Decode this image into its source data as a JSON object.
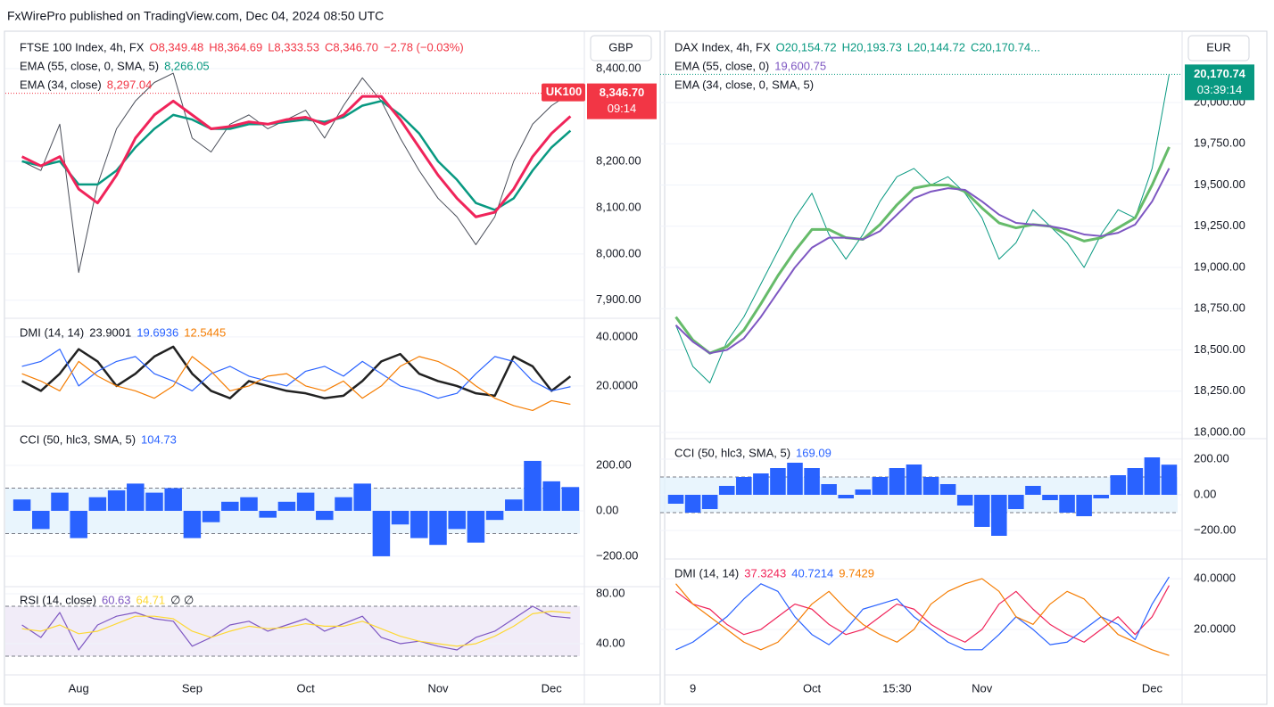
{
  "header": {
    "title": "FxWirePro published on TradingView.com, Dec 04, 2024 08:50 UTC"
  },
  "chart_data": [
    {
      "type": "line",
      "currency": "GBP",
      "legend_rows": [
        [
          {
            "text": "FTSE 100 Index, 4h, FX",
            "color": "#131722"
          },
          {
            "text": "O8,349.48",
            "color": "#f23645"
          },
          {
            "text": "H8,364.69",
            "color": "#f23645"
          },
          {
            "text": "L8,333.53",
            "color": "#f23645"
          },
          {
            "text": "C8,346.70",
            "color": "#f23645"
          },
          {
            "text": "−2.78 (−0.03%)",
            "color": "#f23645"
          }
        ],
        [
          {
            "text": "EMA (55, close, 0, SMA, 5)",
            "color": "#131722"
          },
          {
            "text": "8,266.05",
            "color": "#089981"
          }
        ],
        [
          {
            "text": "EMA (34, close)",
            "color": "#131722"
          },
          {
            "text": "8,297.04",
            "color": "#f23645"
          }
        ]
      ],
      "price_tag": {
        "symbol": "UK100",
        "price": "8,346.70",
        "countdown": "09:14",
        "color": "#f23645"
      },
      "categories": [
        null,
        null,
        null,
        "Aug",
        null,
        null,
        null,
        null,
        null,
        "Sep",
        null,
        null,
        null,
        null,
        null,
        "Oct",
        null,
        null,
        null,
        null,
        null,
        null,
        "Nov",
        null,
        null,
        null,
        null,
        null,
        "Dec",
        null
      ],
      "series": [
        {
          "name": "Close",
          "color": "#4a4e59",
          "width": 1,
          "values": [
            8200,
            8180,
            8280,
            7960,
            8150,
            8270,
            8330,
            8370,
            8390,
            8250,
            8220,
            8280,
            8300,
            8270,
            8290,
            8310,
            8250,
            8320,
            8380,
            8330,
            8250,
            8180,
            8120,
            8080,
            8020,
            8080,
            8200,
            8280,
            8320,
            8346.7
          ]
        },
        {
          "name": "EMA 55",
          "color": "#089981",
          "width": 2.5,
          "values": [
            8200,
            8190,
            8200,
            8150,
            8150,
            8180,
            8230,
            8270,
            8300,
            8290,
            8270,
            8270,
            8280,
            8280,
            8285,
            8290,
            8285,
            8295,
            8320,
            8330,
            8300,
            8260,
            8200,
            8160,
            8110,
            8095,
            8120,
            8180,
            8230,
            8266.05
          ]
        },
        {
          "name": "EMA 34",
          "color": "#f0245a",
          "width": 3,
          "values": [
            8210,
            8190,
            8210,
            8140,
            8110,
            8170,
            8250,
            8300,
            8330,
            8300,
            8270,
            8275,
            8285,
            8280,
            8290,
            8295,
            8280,
            8300,
            8340,
            8340,
            8290,
            8230,
            8170,
            8120,
            8080,
            8090,
            8140,
            8210,
            8260,
            8297.04
          ]
        }
      ],
      "ylim": [
        7865,
        8471
      ],
      "yticks": [
        {
          "value": 8400,
          "label": "8,400.00"
        },
        {
          "value": 8200,
          "label": "8,200.00"
        },
        {
          "value": 8100,
          "label": "8,100.00"
        },
        {
          "value": 8000,
          "label": "8,000.00"
        },
        {
          "value": 7900,
          "label": "7,900.00"
        }
      ]
    },
    {
      "type": "line",
      "legend_rows": [
        [
          {
            "text": "DMI (14, 14)",
            "color": "#131722"
          },
          {
            "text": "23.9001",
            "color": "#131722"
          },
          {
            "text": "19.6936",
            "color": "#2962ff"
          },
          {
            "text": "12.5445",
            "color": "#f57c00"
          }
        ]
      ],
      "series": [
        {
          "name": "ADX",
          "color": "#222222",
          "width": 2.5,
          "values": [
            22,
            18,
            25,
            35,
            30,
            20,
            25,
            32,
            36,
            25,
            18,
            15,
            22,
            20,
            18,
            17,
            15,
            16,
            22,
            30,
            33,
            25,
            22,
            20,
            17,
            16,
            32,
            28,
            18,
            23.9001
          ]
        },
        {
          "name": "+DI",
          "color": "#2962ff",
          "width": 1.2,
          "values": [
            28,
            30,
            35,
            20,
            26,
            30,
            32,
            25,
            22,
            18,
            25,
            28,
            24,
            22,
            20,
            26,
            28,
            24,
            30,
            25,
            20,
            18,
            15,
            17,
            25,
            32,
            30,
            22,
            18,
            19.6936
          ]
        },
        {
          "name": "-DI",
          "color": "#f57c00",
          "width": 1.2,
          "values": [
            25,
            22,
            18,
            30,
            24,
            20,
            18,
            15,
            20,
            32,
            26,
            18,
            20,
            24,
            25,
            20,
            18,
            22,
            15,
            20,
            28,
            32,
            30,
            26,
            20,
            15,
            12,
            10,
            14,
            12.5445
          ]
        }
      ],
      "ylim": [
        4.7,
        46.5
      ],
      "yticks": [
        {
          "value": 40,
          "label": "40.0000"
        },
        {
          "value": 20,
          "label": "20.0000"
        }
      ]
    },
    {
      "type": "bar",
      "color": "#2962ff",
      "band": [
        -100,
        100
      ],
      "legend_rows": [
        [
          {
            "text": "CCI (50, hlc3, SMA, 5)",
            "color": "#131722"
          },
          {
            "text": "104.73",
            "color": "#2962ff"
          }
        ]
      ],
      "values": [
        50,
        -80,
        80,
        -120,
        60,
        90,
        120,
        80,
        100,
        -120,
        -50,
        40,
        60,
        -30,
        40,
        80,
        -40,
        60,
        120,
        -200,
        -60,
        -120,
        -150,
        -80,
        -140,
        -40,
        50,
        220,
        130,
        104.73
      ],
      "ylim": [
        -322,
        365
      ],
      "yticks": [
        {
          "value": 200,
          "label": "200.00"
        },
        {
          "value": 0,
          "label": "0.00"
        },
        {
          "value": -200,
          "label": "−200.00"
        }
      ]
    },
    {
      "type": "line",
      "band": [
        30,
        70
      ],
      "band_color": "#ede7f6",
      "legend_rows": [
        [
          {
            "text": "RSI (14, close)",
            "color": "#131722"
          },
          {
            "text": "60.63",
            "color": "#7e57c2"
          },
          {
            "text": "64.71",
            "color": "#fdd835"
          },
          {
            "text": "∅ ∅",
            "color": "#131722"
          }
        ]
      ],
      "series": [
        {
          "name": "RSI",
          "color": "#7e57c2",
          "width": 1.2,
          "values": [
            55,
            45,
            65,
            35,
            55,
            62,
            65,
            60,
            58,
            38,
            45,
            55,
            58,
            50,
            55,
            60,
            50,
            56,
            62,
            45,
            40,
            42,
            38,
            35,
            45,
            50,
            60,
            70,
            62,
            60.63
          ]
        },
        {
          "name": "RSI MA",
          "color": "#fdd835",
          "width": 1.2,
          "values": [
            52,
            50,
            55,
            48,
            50,
            56,
            62,
            62,
            60,
            50,
            45,
            50,
            54,
            52,
            53,
            56,
            54,
            54,
            58,
            52,
            46,
            42,
            40,
            38,
            40,
            46,
            54,
            64,
            66,
            64.71
          ]
        }
      ],
      "ylim": [
        16.4,
        84.3
      ],
      "yticks": [
        {
          "value": 80,
          "label": "80.00"
        },
        {
          "value": 40,
          "label": "40.00"
        }
      ]
    },
    {
      "type": "line",
      "currency": "EUR",
      "legend_rows": [
        [
          {
            "text": "DAX Index, 4h, FX",
            "color": "#131722"
          },
          {
            "text": "O20,154.72",
            "color": "#089981"
          },
          {
            "text": "H20,193.73",
            "color": "#089981"
          },
          {
            "text": "L20,144.72",
            "color": "#089981"
          },
          {
            "text": "C20,170.74...",
            "color": "#089981"
          }
        ],
        [
          {
            "text": "EMA (55, close, 0)",
            "color": "#131722"
          },
          {
            "text": "19,600.75",
            "color": "#7e57c2"
          }
        ],
        [
          {
            "text": "EMA (34, close, 0, SMA, 5)",
            "color": "#131722"
          }
        ]
      ],
      "price_tag": {
        "price": "20,170.74",
        "countdown": "03:39:14",
        "color": "#089981"
      },
      "categories": [
        null,
        "9",
        null,
        null,
        null,
        null,
        null,
        null,
        "Oct",
        null,
        null,
        null,
        null,
        "15:30",
        null,
        null,
        null,
        null,
        "Nov",
        null,
        null,
        null,
        null,
        null,
        null,
        null,
        null,
        null,
        "Dec",
        null
      ],
      "series": [
        {
          "name": "Close",
          "color": "#089981",
          "width": 1,
          "values": [
            18650,
            18400,
            18300,
            18550,
            18700,
            18900,
            19100,
            19300,
            19450,
            19200,
            19050,
            19200,
            19400,
            19550,
            19600,
            19500,
            19550,
            19450,
            19300,
            19050,
            19150,
            19350,
            19250,
            19150,
            19000,
            19200,
            19350,
            19300,
            19600,
            20170.74
          ]
        },
        {
          "name": "EMA 34",
          "color": "#66bb6a",
          "width": 3,
          "values": [
            18700,
            18560,
            18480,
            18520,
            18620,
            18780,
            18950,
            19100,
            19230,
            19230,
            19180,
            19170,
            19260,
            19380,
            19480,
            19500,
            19500,
            19460,
            19360,
            19270,
            19240,
            19260,
            19250,
            19200,
            19160,
            19180,
            19240,
            19300,
            19500,
            19730
          ]
        },
        {
          "name": "EMA 55",
          "color": "#7e57c2",
          "width": 2,
          "values": [
            18650,
            18550,
            18480,
            18500,
            18570,
            18700,
            18850,
            19000,
            19120,
            19180,
            19180,
            19170,
            19220,
            19320,
            19420,
            19460,
            19480,
            19470,
            19400,
            19320,
            19270,
            19260,
            19250,
            19230,
            19200,
            19190,
            19210,
            19260,
            19400,
            19600.75
          ]
        }
      ],
      "ylim": [
        17973,
        20405
      ],
      "yticks": [
        {
          "value": 20000,
          "label": "20,000.00"
        },
        {
          "value": 19750,
          "label": "19,750.00"
        },
        {
          "value": 19500,
          "label": "19,500.00"
        },
        {
          "value": 19250,
          "label": "19,250.00"
        },
        {
          "value": 19000,
          "label": "19,000.00"
        },
        {
          "value": 18750,
          "label": "18,750.00"
        },
        {
          "value": 18500,
          "label": "18,500.00"
        },
        {
          "value": 18250,
          "label": "18,250.00"
        },
        {
          "value": 18000,
          "label": "18,000.00"
        }
      ]
    },
    {
      "type": "bar",
      "color": "#2962ff",
      "band": [
        -100,
        100
      ],
      "legend_rows": [
        [
          {
            "text": "CCI (50, hlc3, SMA, 5)",
            "color": "#131722"
          },
          {
            "text": "169.09",
            "color": "#2962ff"
          }
        ]
      ],
      "values": [
        -50,
        -100,
        -80,
        50,
        100,
        120,
        150,
        180,
        150,
        60,
        -20,
        30,
        100,
        150,
        170,
        100,
        60,
        -60,
        -180,
        -230,
        -80,
        50,
        -30,
        -100,
        -120,
        -20,
        110,
        150,
        210,
        169.09
      ],
      "ylim": [
        -350,
        300
      ],
      "yticks": [
        {
          "value": 200,
          "label": "200.00"
        },
        {
          "value": 0,
          "label": "0.00"
        },
        {
          "value": -200,
          "label": "−200.00"
        }
      ]
    },
    {
      "type": "line",
      "legend_rows": [
        [
          {
            "text": "DMI (14, 14)",
            "color": "#131722"
          },
          {
            "text": "37.3243",
            "color": "#f0245a"
          },
          {
            "text": "40.7214",
            "color": "#2962ff"
          },
          {
            "text": "9.7429",
            "color": "#f57c00"
          }
        ]
      ],
      "series": [
        {
          "name": "ADX",
          "color": "#f0245a",
          "width": 1.2,
          "values": [
            35,
            30,
            28,
            22,
            18,
            20,
            25,
            30,
            28,
            22,
            18,
            20,
            25,
            30,
            28,
            22,
            18,
            15,
            20,
            30,
            35,
            28,
            22,
            18,
            15,
            20,
            25,
            18,
            25,
            37.3243
          ]
        },
        {
          "name": "+DI",
          "color": "#2962ff",
          "width": 1.2,
          "values": [
            12,
            15,
            20,
            25,
            32,
            38,
            35,
            25,
            18,
            14,
            20,
            28,
            30,
            32,
            25,
            20,
            15,
            12,
            12,
            18,
            25,
            20,
            14,
            15,
            20,
            25,
            22,
            16,
            30,
            40.7214
          ]
        },
        {
          "name": "-DI",
          "color": "#f57c00",
          "width": 1.2,
          "values": [
            38,
            30,
            25,
            20,
            15,
            12,
            15,
            22,
            30,
            35,
            28,
            22,
            18,
            15,
            20,
            30,
            35,
            38,
            40,
            35,
            25,
            22,
            30,
            35,
            32,
            25,
            18,
            15,
            12,
            9.7429
          ]
        }
      ],
      "ylim": [
        2.8,
        46.7
      ],
      "yticks": [
        {
          "value": 40,
          "label": "40.0000"
        },
        {
          "value": 20,
          "label": "20.0000"
        }
      ]
    }
  ]
}
